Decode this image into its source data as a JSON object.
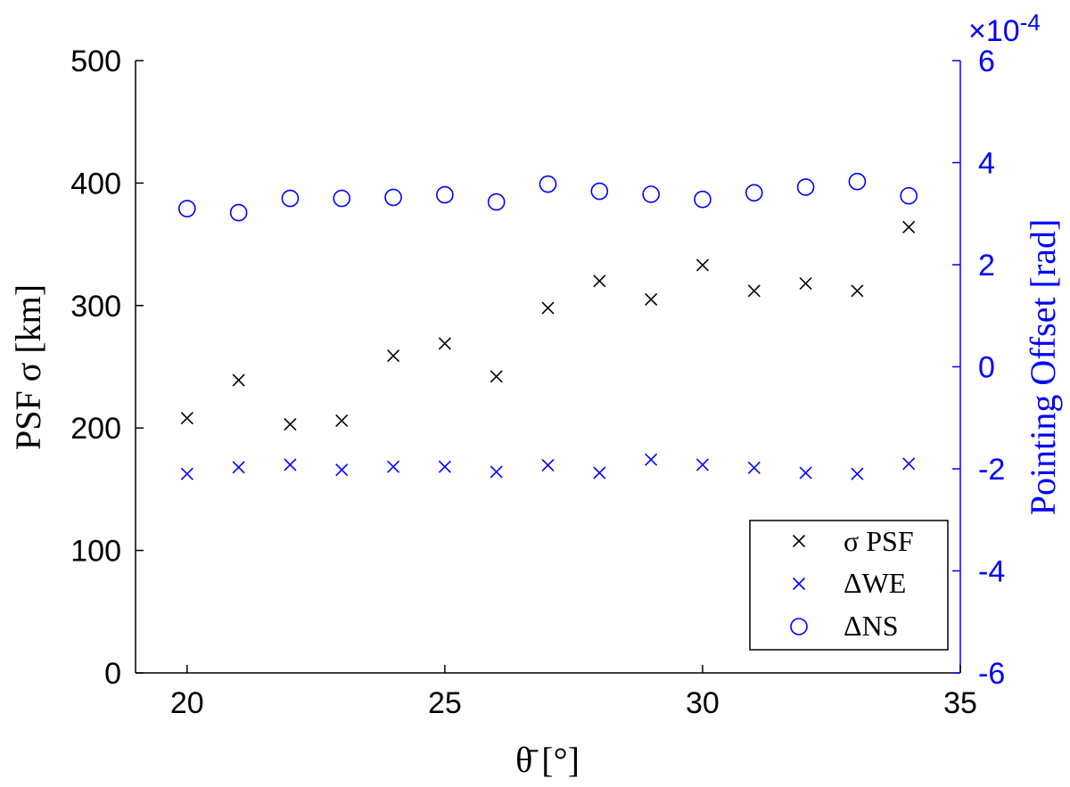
{
  "colors": {
    "left_axis": "#000000",
    "right_axis": "#0000ff",
    "sigma_psf": "#000000",
    "delta_we": "#0000ff",
    "delta_ns": "#0000ff"
  },
  "chart_data": {
    "type": "scatter",
    "xlabel": "θ̄ [°]",
    "ylabel_left": "PSF σ [km]",
    "ylabel_right": "Pointing Offset [rad]",
    "xlim": [
      19,
      35
    ],
    "ylim_left": [
      0,
      500
    ],
    "ylim_right": [
      -0.0006,
      0.0006
    ],
    "right_axis_multiplier": "×10",
    "right_axis_exponent": "-4",
    "x_ticks": [
      "20",
      "25",
      "30",
      "35"
    ],
    "y_left_ticks": [
      "0",
      "100",
      "200",
      "300",
      "400",
      "500"
    ],
    "y_right_ticks": [
      "-6",
      "-4",
      "-2",
      "0",
      "2",
      "4",
      "6"
    ],
    "grid": false,
    "legend_position": "bottom-right",
    "series": [
      {
        "name": "σ PSF",
        "axis": "left",
        "marker": "x",
        "color": "#000000",
        "x": [
          20,
          21,
          22,
          23,
          24,
          25,
          26,
          27,
          28,
          29,
          30,
          31,
          32,
          33,
          34
        ],
        "y": [
          208,
          239,
          203,
          206,
          259,
          269,
          242,
          298,
          320,
          305,
          333,
          312,
          318,
          312,
          364
        ]
      },
      {
        "name": "ΔWE",
        "axis": "right",
        "marker": "x",
        "color": "#0000ff",
        "x": [
          20,
          21,
          22,
          23,
          24,
          25,
          26,
          27,
          28,
          29,
          30,
          31,
          32,
          33,
          34
        ],
        "y": [
          -0.00021,
          -0.000197,
          -0.000192,
          -0.000202,
          -0.000196,
          -0.000196,
          -0.000206,
          -0.000193,
          -0.000208,
          -0.000182,
          -0.000192,
          -0.000198,
          -0.000208,
          -0.00021,
          -0.00019
        ]
      },
      {
        "name": "ΔNS",
        "axis": "right",
        "marker": "o",
        "color": "#0000ff",
        "x": [
          20,
          21,
          22,
          23,
          24,
          25,
          26,
          27,
          28,
          29,
          30,
          31,
          32,
          33,
          34
        ],
        "y": [
          0.00031,
          0.000302,
          0.00033,
          0.00033,
          0.000332,
          0.000337,
          0.000323,
          0.000358,
          0.000344,
          0.000338,
          0.000328,
          0.000341,
          0.000352,
          0.000363,
          0.000335
        ]
      }
    ]
  }
}
